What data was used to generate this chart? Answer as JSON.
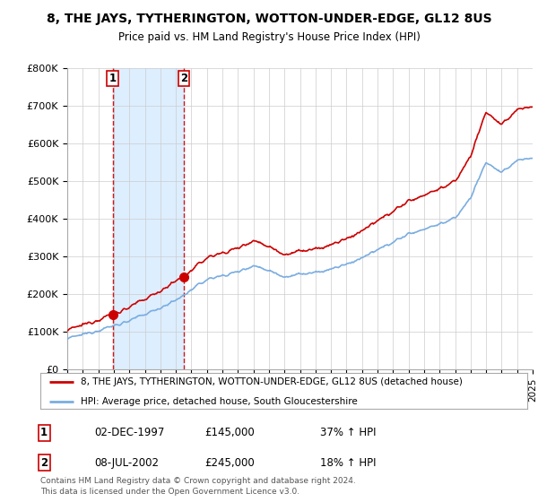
{
  "title": "8, THE JAYS, TYTHERINGTON, WOTTON-UNDER-EDGE, GL12 8US",
  "subtitle": "Price paid vs. HM Land Registry's House Price Index (HPI)",
  "legend_line1": "8, THE JAYS, TYTHERINGTON, WOTTON-UNDER-EDGE, GL12 8US (detached house)",
  "legend_line2": "HPI: Average price, detached house, South Gloucestershire",
  "transaction1_date": "02-DEC-1997",
  "transaction1_price": "£145,000",
  "transaction1_hpi": "37% ↑ HPI",
  "transaction2_date": "08-JUL-2002",
  "transaction2_price": "£245,000",
  "transaction2_hpi": "18% ↑ HPI",
  "footer": "Contains HM Land Registry data © Crown copyright and database right 2024.\nThis data is licensed under the Open Government Licence v3.0.",
  "ylim": [
    0,
    800000
  ],
  "yticks": [
    0,
    100000,
    200000,
    300000,
    400000,
    500000,
    600000,
    700000,
    800000
  ],
  "ytick_labels": [
    "£0",
    "£100K",
    "£200K",
    "£300K",
    "£400K",
    "£500K",
    "£600K",
    "£700K",
    "£800K"
  ],
  "hpi_color": "#7aade0",
  "price_color": "#cc0000",
  "shade_color": "#ddeeff",
  "background_color": "#ffffff",
  "grid_color": "#cccccc",
  "transaction1_x": 1997.92,
  "transaction1_y": 145000,
  "transaction2_x": 2002.52,
  "transaction2_y": 245000,
  "xmin": 1995,
  "xmax": 2025
}
